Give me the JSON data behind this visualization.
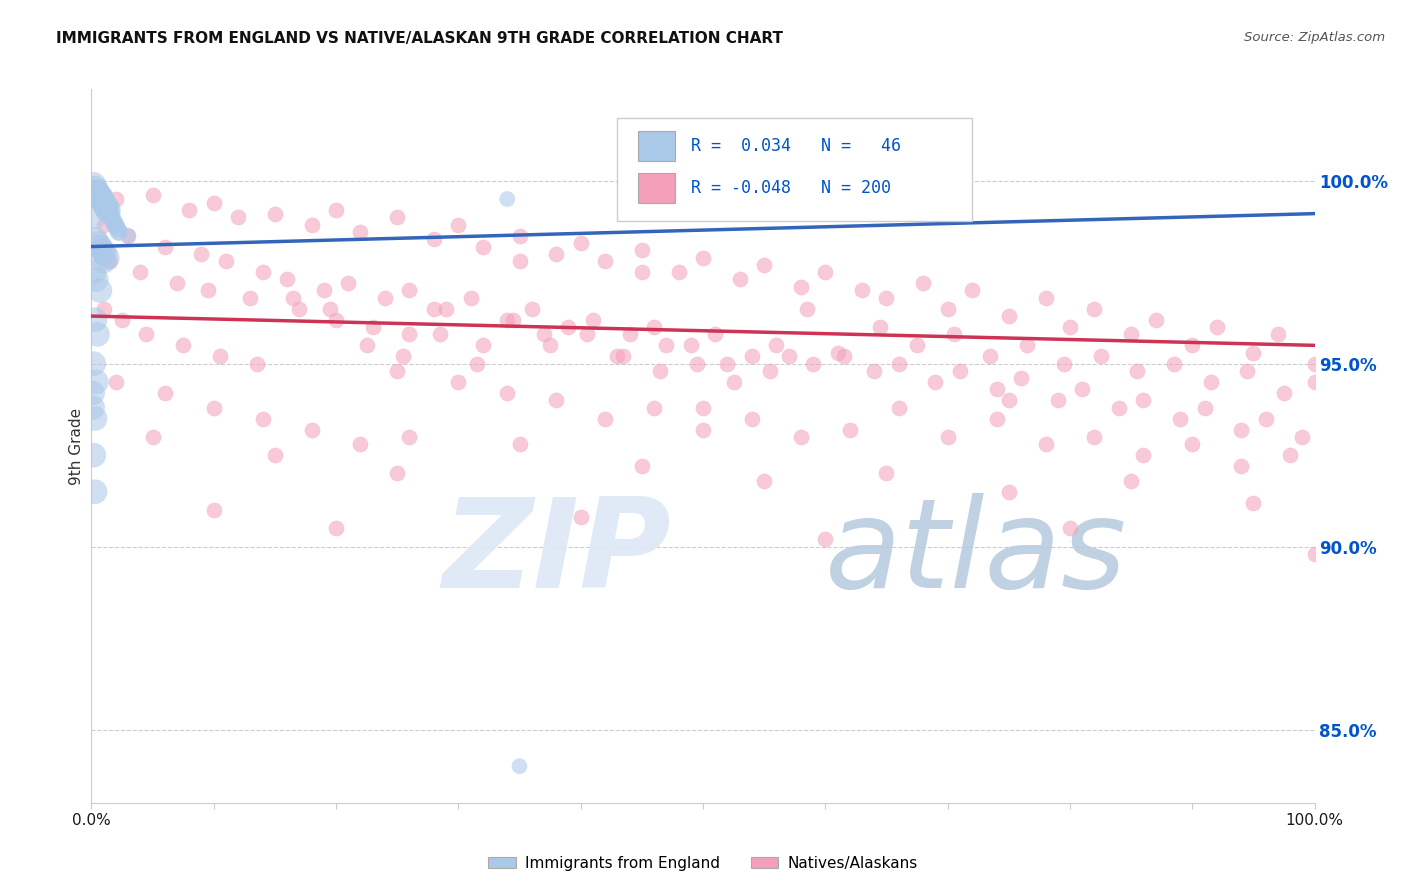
{
  "title": "IMMIGRANTS FROM ENGLAND VS NATIVE/ALASKAN 9TH GRADE CORRELATION CHART",
  "source": "Source: ZipAtlas.com",
  "ylabel": "9th Grade",
  "right_yticks": [
    85.0,
    90.0,
    95.0,
    100.0
  ],
  "blue_color": "#aac8e8",
  "pink_color": "#f4a0b8",
  "blue_line_color": "#3366bb",
  "pink_line_color": "#cc3355",
  "blue_line": {
    "x0": 0.0,
    "x1": 1.0,
    "y0": 98.2,
    "y1": 99.1
  },
  "pink_line": {
    "x0": 0.0,
    "x1": 1.0,
    "y0": 96.3,
    "y1": 95.5
  },
  "xlim": [
    0.0,
    1.0
  ],
  "ylim": [
    83.0,
    102.5
  ],
  "background_color": "#ffffff",
  "grid_color": "#cccccc",
  "blue_scatter": [
    [
      0.002,
      99.9
    ],
    [
      0.003,
      99.8
    ],
    [
      0.004,
      99.7
    ],
    [
      0.005,
      99.7
    ],
    [
      0.006,
      99.6
    ],
    [
      0.007,
      99.6
    ],
    [
      0.008,
      99.5
    ],
    [
      0.009,
      99.5
    ],
    [
      0.01,
      99.4
    ],
    [
      0.011,
      99.3
    ],
    [
      0.012,
      99.3
    ],
    [
      0.013,
      99.2
    ],
    [
      0.014,
      99.2
    ],
    [
      0.015,
      99.1
    ],
    [
      0.016,
      99.0
    ],
    [
      0.017,
      99.0
    ],
    [
      0.018,
      98.9
    ],
    [
      0.019,
      98.8
    ],
    [
      0.02,
      98.8
    ],
    [
      0.021,
      98.7
    ],
    [
      0.022,
      98.6
    ],
    [
      0.023,
      98.6
    ],
    [
      0.003,
      98.4
    ],
    [
      0.005,
      98.3
    ],
    [
      0.007,
      98.2
    ],
    [
      0.009,
      98.1
    ],
    [
      0.011,
      98.0
    ],
    [
      0.013,
      97.9
    ],
    [
      0.002,
      97.5
    ],
    [
      0.004,
      97.3
    ],
    [
      0.007,
      97.0
    ],
    [
      0.003,
      96.2
    ],
    [
      0.005,
      95.8
    ],
    [
      0.002,
      95.0
    ],
    [
      0.004,
      94.5
    ],
    [
      0.001,
      93.8
    ],
    [
      0.003,
      93.5
    ],
    [
      0.002,
      92.5
    ],
    [
      0.003,
      91.5
    ],
    [
      0.001,
      94.2
    ],
    [
      0.03,
      98.5
    ],
    [
      0.34,
      99.5
    ],
    [
      0.56,
      99.1
    ],
    [
      0.35,
      84.0
    ],
    [
      0.002,
      99.0
    ],
    [
      0.01,
      97.8
    ]
  ],
  "pink_scatter": [
    [
      0.005,
      99.8
    ],
    [
      0.02,
      99.5
    ],
    [
      0.05,
      99.6
    ],
    [
      0.08,
      99.2
    ],
    [
      0.1,
      99.4
    ],
    [
      0.12,
      99.0
    ],
    [
      0.15,
      99.1
    ],
    [
      0.18,
      98.8
    ],
    [
      0.2,
      99.2
    ],
    [
      0.22,
      98.6
    ],
    [
      0.25,
      99.0
    ],
    [
      0.28,
      98.4
    ],
    [
      0.3,
      98.8
    ],
    [
      0.32,
      98.2
    ],
    [
      0.35,
      98.5
    ],
    [
      0.38,
      98.0
    ],
    [
      0.4,
      98.3
    ],
    [
      0.42,
      97.8
    ],
    [
      0.45,
      98.1
    ],
    [
      0.48,
      97.5
    ],
    [
      0.5,
      97.9
    ],
    [
      0.53,
      97.3
    ],
    [
      0.55,
      97.7
    ],
    [
      0.58,
      97.1
    ],
    [
      0.6,
      97.5
    ],
    [
      0.63,
      97.0
    ],
    [
      0.65,
      96.8
    ],
    [
      0.68,
      97.2
    ],
    [
      0.7,
      96.5
    ],
    [
      0.72,
      97.0
    ],
    [
      0.75,
      96.3
    ],
    [
      0.78,
      96.8
    ],
    [
      0.8,
      96.0
    ],
    [
      0.82,
      96.5
    ],
    [
      0.85,
      95.8
    ],
    [
      0.87,
      96.2
    ],
    [
      0.9,
      95.5
    ],
    [
      0.92,
      96.0
    ],
    [
      0.95,
      95.3
    ],
    [
      0.97,
      95.8
    ],
    [
      1.0,
      95.0
    ],
    [
      0.01,
      98.8
    ],
    [
      0.03,
      98.5
    ],
    [
      0.06,
      98.2
    ],
    [
      0.09,
      98.0
    ],
    [
      0.11,
      97.8
    ],
    [
      0.14,
      97.5
    ],
    [
      0.16,
      97.3
    ],
    [
      0.19,
      97.0
    ],
    [
      0.21,
      97.2
    ],
    [
      0.24,
      96.8
    ],
    [
      0.26,
      97.0
    ],
    [
      0.29,
      96.5
    ],
    [
      0.31,
      96.8
    ],
    [
      0.34,
      96.2
    ],
    [
      0.36,
      96.5
    ],
    [
      0.39,
      96.0
    ],
    [
      0.41,
      96.2
    ],
    [
      0.44,
      95.8
    ],
    [
      0.46,
      96.0
    ],
    [
      0.49,
      95.5
    ],
    [
      0.51,
      95.8
    ],
    [
      0.54,
      95.2
    ],
    [
      0.56,
      95.5
    ],
    [
      0.59,
      95.0
    ],
    [
      0.61,
      95.3
    ],
    [
      0.64,
      94.8
    ],
    [
      0.66,
      95.0
    ],
    [
      0.69,
      94.5
    ],
    [
      0.71,
      94.8
    ],
    [
      0.74,
      94.3
    ],
    [
      0.76,
      94.6
    ],
    [
      0.79,
      94.0
    ],
    [
      0.81,
      94.3
    ],
    [
      0.84,
      93.8
    ],
    [
      0.86,
      94.0
    ],
    [
      0.89,
      93.5
    ],
    [
      0.91,
      93.8
    ],
    [
      0.94,
      93.2
    ],
    [
      0.96,
      93.5
    ],
    [
      0.99,
      93.0
    ],
    [
      0.015,
      97.8
    ],
    [
      0.04,
      97.5
    ],
    [
      0.07,
      97.2
    ],
    [
      0.095,
      97.0
    ],
    [
      0.13,
      96.8
    ],
    [
      0.17,
      96.5
    ],
    [
      0.2,
      96.2
    ],
    [
      0.23,
      96.0
    ],
    [
      0.26,
      95.8
    ],
    [
      0.28,
      96.5
    ],
    [
      0.32,
      95.5
    ],
    [
      0.37,
      95.8
    ],
    [
      0.43,
      95.2
    ],
    [
      0.47,
      95.5
    ],
    [
      0.52,
      95.0
    ],
    [
      0.57,
      95.2
    ],
    [
      0.01,
      96.5
    ],
    [
      0.025,
      96.2
    ],
    [
      0.045,
      95.8
    ],
    [
      0.075,
      95.5
    ],
    [
      0.105,
      95.2
    ],
    [
      0.135,
      95.0
    ],
    [
      0.165,
      96.8
    ],
    [
      0.195,
      96.5
    ],
    [
      0.225,
      95.5
    ],
    [
      0.255,
      95.2
    ],
    [
      0.285,
      95.8
    ],
    [
      0.315,
      95.0
    ],
    [
      0.345,
      96.2
    ],
    [
      0.375,
      95.5
    ],
    [
      0.405,
      95.8
    ],
    [
      0.435,
      95.2
    ],
    [
      0.465,
      94.8
    ],
    [
      0.495,
      95.0
    ],
    [
      0.525,
      94.5
    ],
    [
      0.555,
      94.8
    ],
    [
      0.585,
      96.5
    ],
    [
      0.615,
      95.2
    ],
    [
      0.645,
      96.0
    ],
    [
      0.675,
      95.5
    ],
    [
      0.705,
      95.8
    ],
    [
      0.735,
      95.2
    ],
    [
      0.765,
      95.5
    ],
    [
      0.795,
      95.0
    ],
    [
      0.825,
      95.2
    ],
    [
      0.855,
      94.8
    ],
    [
      0.885,
      95.0
    ],
    [
      0.915,
      94.5
    ],
    [
      0.945,
      94.8
    ],
    [
      0.975,
      94.2
    ],
    [
      1.0,
      94.5
    ],
    [
      0.02,
      94.5
    ],
    [
      0.06,
      94.2
    ],
    [
      0.1,
      93.8
    ],
    [
      0.14,
      93.5
    ],
    [
      0.18,
      93.2
    ],
    [
      0.22,
      92.8
    ],
    [
      0.26,
      93.0
    ],
    [
      0.3,
      94.5
    ],
    [
      0.34,
      94.2
    ],
    [
      0.38,
      94.0
    ],
    [
      0.42,
      93.5
    ],
    [
      0.46,
      93.8
    ],
    [
      0.5,
      93.2
    ],
    [
      0.54,
      93.5
    ],
    [
      0.58,
      93.0
    ],
    [
      0.62,
      93.2
    ],
    [
      0.66,
      93.8
    ],
    [
      0.7,
      93.0
    ],
    [
      0.74,
      93.5
    ],
    [
      0.78,
      92.8
    ],
    [
      0.82,
      93.0
    ],
    [
      0.86,
      92.5
    ],
    [
      0.9,
      92.8
    ],
    [
      0.94,
      92.2
    ],
    [
      0.98,
      92.5
    ],
    [
      0.05,
      93.0
    ],
    [
      0.15,
      92.5
    ],
    [
      0.25,
      92.0
    ],
    [
      0.35,
      92.8
    ],
    [
      0.45,
      92.2
    ],
    [
      0.55,
      91.8
    ],
    [
      0.65,
      92.0
    ],
    [
      0.75,
      91.5
    ],
    [
      0.85,
      91.8
    ],
    [
      0.95,
      91.2
    ],
    [
      0.1,
      91.0
    ],
    [
      0.2,
      90.5
    ],
    [
      0.4,
      90.8
    ],
    [
      0.6,
      90.2
    ],
    [
      0.8,
      90.5
    ],
    [
      1.0,
      89.8
    ],
    [
      0.5,
      93.8
    ],
    [
      0.25,
      94.8
    ],
    [
      0.75,
      94.0
    ],
    [
      0.35,
      97.8
    ],
    [
      0.45,
      97.5
    ]
  ]
}
